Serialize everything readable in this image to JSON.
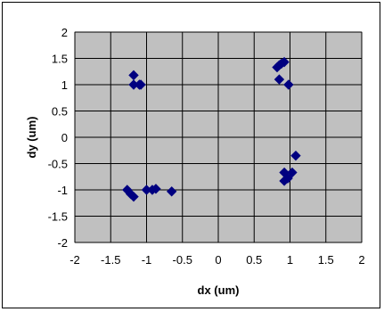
{
  "chart_data": {
    "type": "scatter",
    "title": "",
    "xlabel": "dx  (um)",
    "ylabel": "dy (um)",
    "xlim": [
      -2,
      2
    ],
    "ylim": [
      -2,
      2
    ],
    "xticks": [
      -2,
      -1.5,
      -1,
      -0.5,
      0,
      0.5,
      1,
      1.5,
      2
    ],
    "yticks": [
      -2,
      -1.5,
      -1,
      -0.5,
      0,
      0.5,
      1,
      1.5,
      2
    ],
    "grid": true,
    "legend": "none",
    "plot_background": "#c0c0c0",
    "marker_color": "#000080",
    "marker": "diamond",
    "points": [
      {
        "x": -1.18,
        "y": 1.18
      },
      {
        "x": -1.18,
        "y": 1.0
      },
      {
        "x": -1.1,
        "y": 1.0
      },
      {
        "x": -1.08,
        "y": 1.0
      },
      {
        "x": 0.82,
        "y": 1.33
      },
      {
        "x": 0.85,
        "y": 1.37
      },
      {
        "x": 0.88,
        "y": 1.4
      },
      {
        "x": 0.92,
        "y": 1.43
      },
      {
        "x": 0.85,
        "y": 1.1
      },
      {
        "x": 0.98,
        "y": 1.0
      },
      {
        "x": 1.08,
        "y": -0.35
      },
      {
        "x": 0.92,
        "y": -0.67
      },
      {
        "x": 1.03,
        "y": -0.67
      },
      {
        "x": 0.92,
        "y": -0.83
      },
      {
        "x": 0.97,
        "y": -0.78
      },
      {
        "x": -1.27,
        "y": -1.0
      },
      {
        "x": -1.22,
        "y": -1.08
      },
      {
        "x": -1.18,
        "y": -1.13
      },
      {
        "x": -1.0,
        "y": -1.0
      },
      {
        "x": -0.92,
        "y": -1.0
      },
      {
        "x": -0.87,
        "y": -0.98
      },
      {
        "x": -0.65,
        "y": -1.03
      }
    ]
  }
}
